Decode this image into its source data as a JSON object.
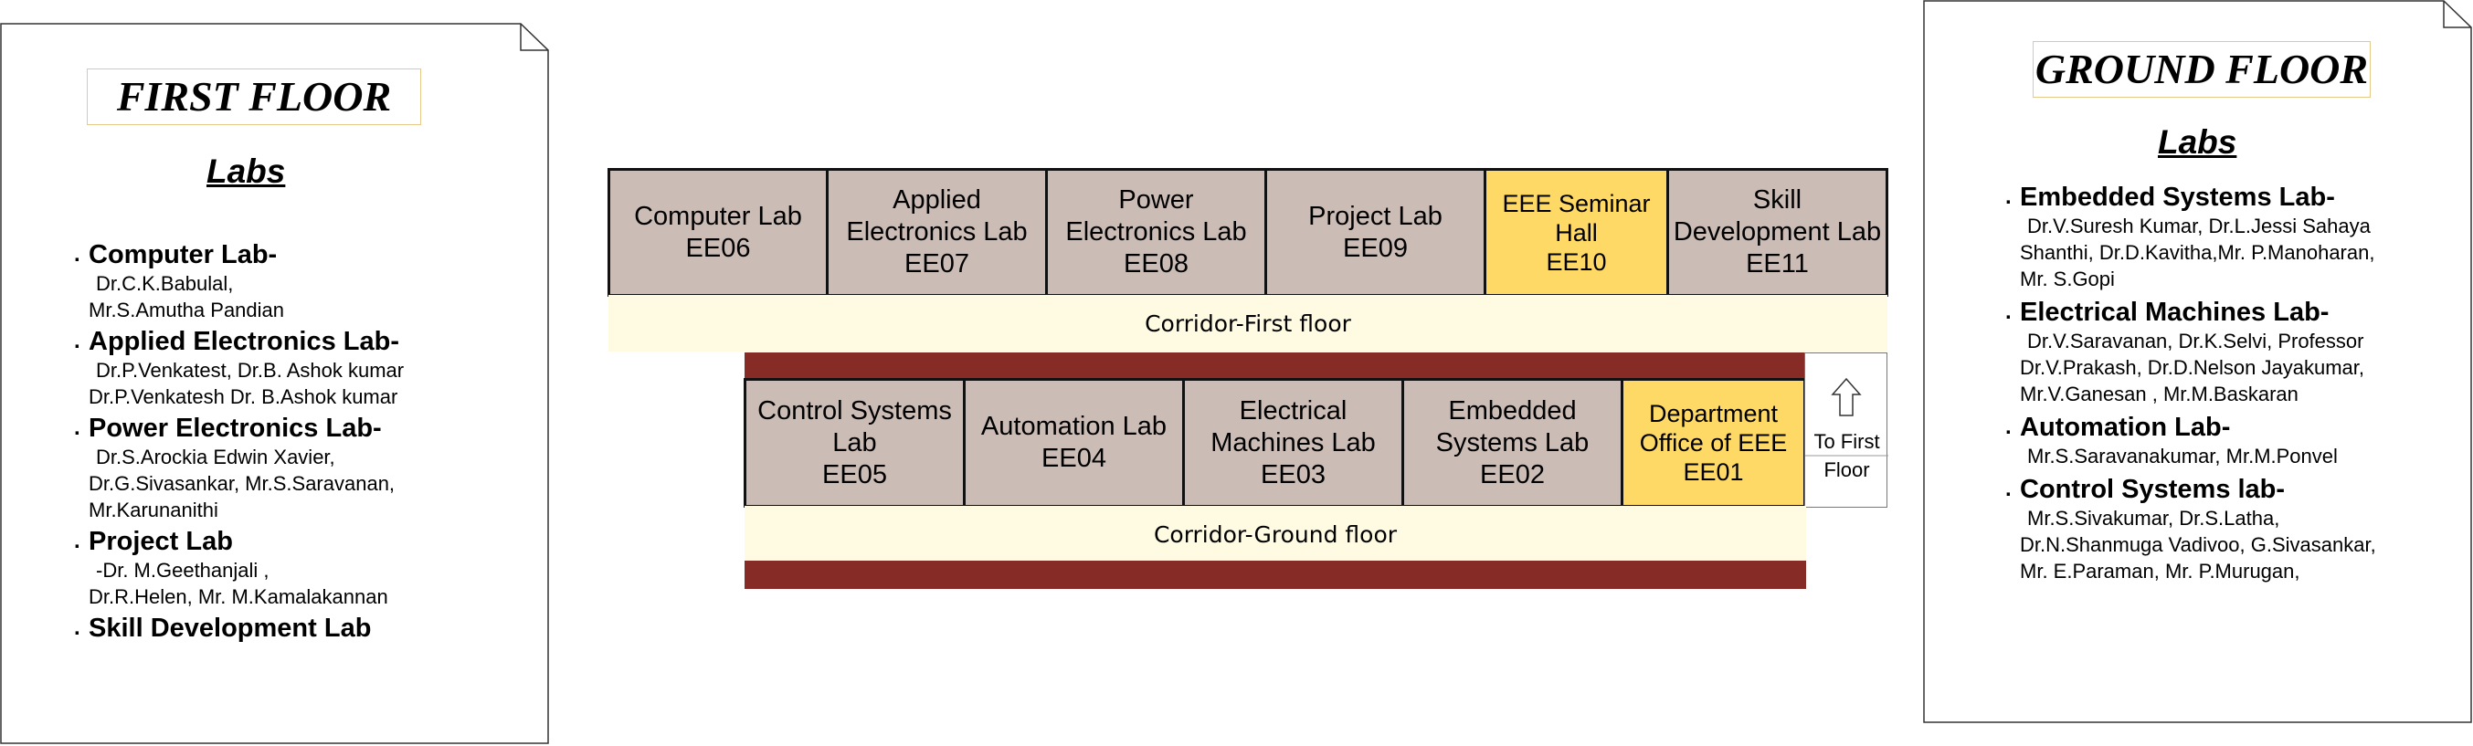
{
  "first_floor_panel": {
    "title": "FIRST FLOOR",
    "labs_heading": "Labs",
    "entries": [
      {
        "name": "Computer Lab-",
        "faculty_lines": [
          "Dr.C.K.Babulal,",
          "Mr.S.Amutha Pandian"
        ]
      },
      {
        "name": "Applied Electronics Lab-",
        "faculty_lines": [
          "Dr.P.Venkatest, Dr.B. Ashok kumar",
          "Dr.P.Venkatesh Dr. B.Ashok kumar"
        ]
      },
      {
        "name": "Power Electronics Lab-",
        "faculty_lines": [
          "Dr.S.Arockia Edwin Xavier,",
          "Dr.G.Sivasankar, Mr.S.Saravanan,",
          "Mr.Karunanithi"
        ]
      },
      {
        "name": "Project Lab",
        "faculty_lines": [
          "-Dr. M.Geethanjali ,",
          "Dr.R.Helen, Mr. M.Kamalakannan"
        ]
      },
      {
        "name": "Skill Development Lab",
        "faculty_lines": []
      }
    ]
  },
  "ground_floor_panel": {
    "title": "GROUND FLOOR",
    "labs_heading": "Labs",
    "entries": [
      {
        "name": "Embedded Systems Lab-",
        "faculty_lines": [
          "Dr.V.Suresh Kumar, Dr.L.Jessi Sahaya",
          "Shanthi, Dr.D.Kavitha,Mr. P.Manoharan,",
          "Mr. S.Gopi"
        ]
      },
      {
        "name": "Electrical Machines Lab-",
        "faculty_lines": [
          "Dr.V.Saravanan, Dr.K.Selvi, Professor",
          "Dr.V.Prakash, Dr.D.Nelson Jayakumar,",
          "Mr.V.Ganesan , Mr.M.Baskaran"
        ]
      },
      {
        "name": "Automation Lab-",
        "faculty_lines": [
          "Mr.S.Saravanakumar, Mr.M.Ponvel"
        ]
      },
      {
        "name": "Control Systems lab-",
        "faculty_lines": [
          "Mr.S.Sivakumar, Dr.S.Latha,",
          "Dr.N.Shanmuga Vadivoo, G.Sivasankar,",
          "Mr. E.Paraman, Mr. P.Murugan,"
        ]
      }
    ]
  },
  "first_floor_rooms": [
    {
      "name_lines": [
        "Computer Lab"
      ],
      "code": "EE06",
      "highlight": false
    },
    {
      "name_lines": [
        "Applied",
        "Electronics Lab"
      ],
      "code": "EE07",
      "highlight": false
    },
    {
      "name_lines": [
        "Power",
        "Electronics Lab"
      ],
      "code": "EE08",
      "highlight": false
    },
    {
      "name_lines": [
        "Project Lab"
      ],
      "code": "EE09",
      "highlight": false
    },
    {
      "name_lines": [
        "EEE Seminar",
        "Hall"
      ],
      "code": "EE10",
      "highlight": true
    },
    {
      "name_lines": [
        "Skill",
        "Development Lab"
      ],
      "code": "EE11",
      "highlight": false
    }
  ],
  "first_floor_corridor": "Corridor-First floor",
  "ground_floor_rooms": [
    {
      "name_lines": [
        "Control Systems",
        "Lab"
      ],
      "code": "EE05",
      "highlight": false
    },
    {
      "name_lines": [
        "Automation Lab"
      ],
      "code": "EE04",
      "highlight": false
    },
    {
      "name_lines": [
        "Electrical",
        "Machines Lab"
      ],
      "code": "EE03",
      "highlight": false
    },
    {
      "name_lines": [
        "Embedded",
        "Systems Lab"
      ],
      "code": "EE02",
      "highlight": false
    },
    {
      "name_lines": [
        "Department",
        "Office of EEE"
      ],
      "code": "EE01",
      "highlight": true
    }
  ],
  "stairs": {
    "line1": "To First",
    "line2": "Floor",
    "icon": "up-arrow-icon"
  },
  "ground_floor_corridor": "Corridor-Ground floor",
  "colors": {
    "room": "#cbbcb6",
    "highlight": "#ffd966",
    "corridor": "#fffbe2",
    "wall": "#862b25"
  }
}
